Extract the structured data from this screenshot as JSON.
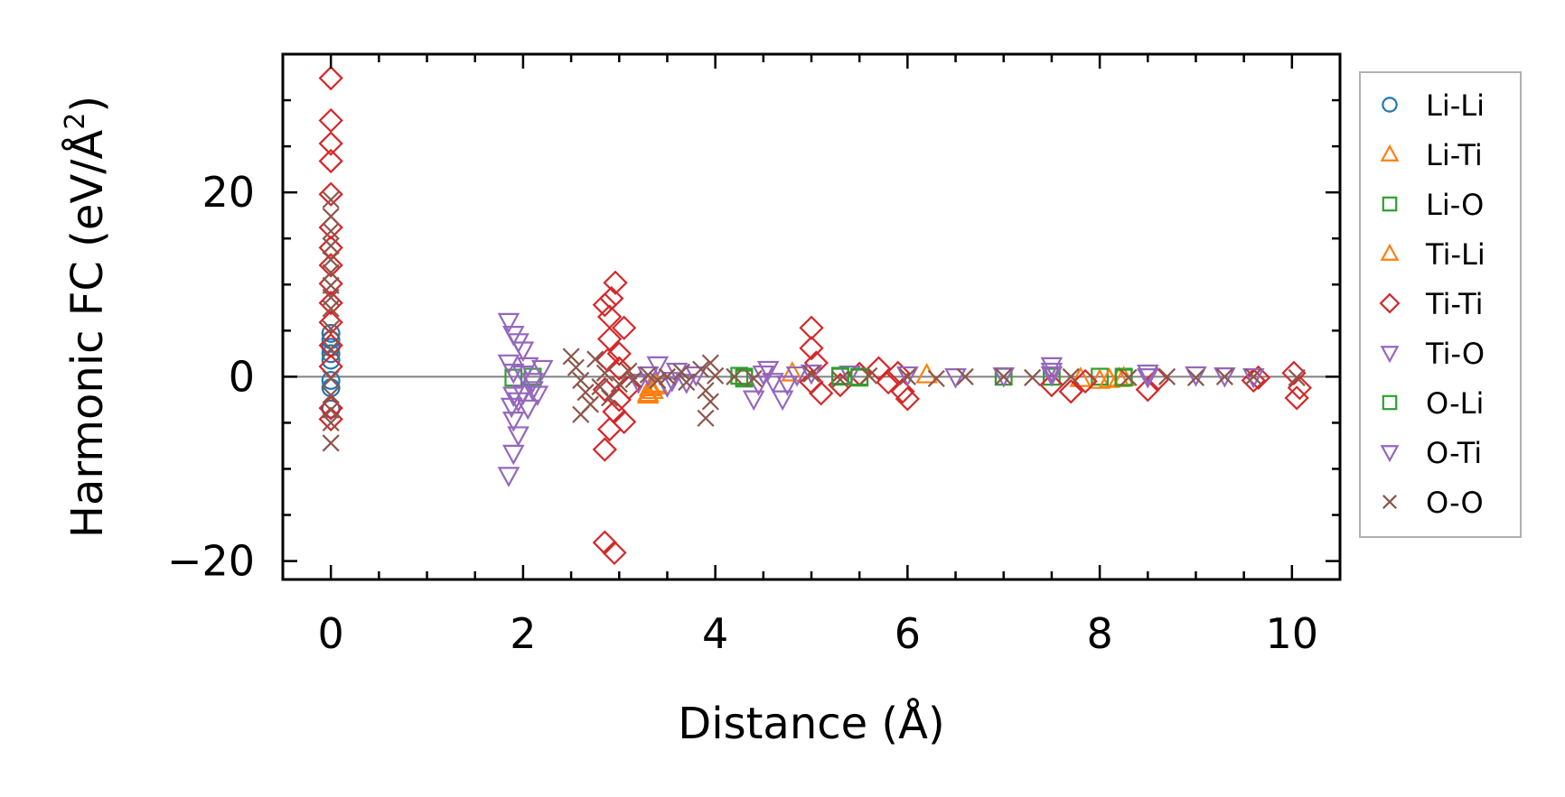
{
  "chart_data": {
    "type": "scatter",
    "xlabel": "Distance (Å)",
    "ylabel_main": "Harmonic FC (eV/Å",
    "ylabel_sup": "2",
    "ylabel_close": ")",
    "xlim": [
      -0.5,
      10.5
    ],
    "ylim": [
      -22,
      35
    ],
    "xticks": [
      0,
      2,
      4,
      6,
      8,
      10
    ],
    "xtick_labels": [
      "0",
      "2",
      "4",
      "6",
      "8",
      "10"
    ],
    "yticks": [
      -20,
      0,
      20
    ],
    "ytick_labels": [
      "−20",
      "0",
      "20"
    ],
    "x_minor_step": 0.5,
    "y_minor_step": 5,
    "zero_line": true,
    "grid": false,
    "legend_position": "outside-right",
    "series": [
      {
        "name": "Li-Li",
        "marker": "circle",
        "color": "#1f77b4",
        "points": [
          [
            0,
            4.7
          ],
          [
            0,
            3.2
          ],
          [
            0,
            -0.4
          ],
          [
            0,
            -3.5
          ],
          [
            0,
            1.8
          ],
          [
            0,
            -1.2
          ],
          [
            0,
            4.0
          ],
          [
            0,
            2.5
          ]
        ]
      },
      {
        "name": "Li-Ti",
        "marker": "triangle-up",
        "color": "#ff7f0e",
        "points": [
          [
            3.3,
            -2.0
          ],
          [
            3.35,
            -1.5
          ],
          [
            3.4,
            -1.0
          ],
          [
            4.8,
            0.4
          ],
          [
            6.2,
            0.2
          ],
          [
            7.8,
            -0.2
          ],
          [
            8.0,
            -0.4
          ],
          [
            8.2,
            -0.2
          ]
        ]
      },
      {
        "name": "Li-O",
        "marker": "square",
        "color": "#2ca02c",
        "points": [
          [
            1.9,
            -0.1
          ],
          [
            2.1,
            0.0
          ],
          [
            4.25,
            0.1
          ],
          [
            4.3,
            0.0
          ],
          [
            5.3,
            0.0
          ],
          [
            5.5,
            -0.1
          ],
          [
            7.0,
            0.0
          ],
          [
            7.5,
            0.0
          ],
          [
            8.0,
            0.0
          ],
          [
            8.25,
            0.0
          ]
        ]
      },
      {
        "name": "Ti-Li",
        "marker": "triangle-up",
        "color": "#ff7f0e",
        "points": [
          [
            3.3,
            -1.8
          ],
          [
            3.32,
            -1.2
          ],
          [
            3.38,
            -0.8
          ],
          [
            8.1,
            -0.3
          ],
          [
            8.25,
            -0.1
          ]
        ]
      },
      {
        "name": "Ti-Ti",
        "marker": "diamond",
        "color": "#d62728",
        "points": [
          [
            0,
            32.4
          ],
          [
            0,
            27.8
          ],
          [
            0,
            25.3
          ],
          [
            0,
            23.4
          ],
          [
            0,
            19.8
          ],
          [
            0,
            16.2
          ],
          [
            0,
            14.0
          ],
          [
            0,
            12.1
          ],
          [
            0,
            10.1
          ],
          [
            0,
            8.0
          ],
          [
            0,
            5.9
          ],
          [
            0,
            3.4
          ],
          [
            0,
            1.1
          ],
          [
            0,
            -3.4
          ],
          [
            0,
            -4.6
          ],
          [
            2.85,
            -18.0
          ],
          [
            2.95,
            -19.1
          ],
          [
            2.85,
            -7.9
          ],
          [
            2.9,
            -5.7
          ],
          [
            2.95,
            -3.8
          ],
          [
            3.0,
            -2.5
          ],
          [
            3.05,
            -4.9
          ],
          [
            2.85,
            7.8
          ],
          [
            2.9,
            6.5
          ],
          [
            2.92,
            8.5
          ],
          [
            2.96,
            10.2
          ],
          [
            2.9,
            4.1
          ],
          [
            3.0,
            2.5
          ],
          [
            3.05,
            5.3
          ],
          [
            3.0,
            0.9
          ],
          [
            2.85,
            -1.4
          ],
          [
            2.88,
            1.8
          ],
          [
            3.1,
            -1.2
          ],
          [
            5.0,
            5.3
          ],
          [
            5.0,
            3.1
          ],
          [
            5.05,
            1.5
          ],
          [
            5.0,
            -0.6
          ],
          [
            5.1,
            -1.8
          ],
          [
            5.3,
            -0.9
          ],
          [
            5.5,
            0.3
          ],
          [
            5.7,
            0.9
          ],
          [
            5.8,
            -0.6
          ],
          [
            5.95,
            -1.6
          ],
          [
            6.0,
            -2.4
          ],
          [
            5.9,
            0.4
          ],
          [
            7.5,
            -0.9
          ],
          [
            7.7,
            -1.6
          ],
          [
            7.85,
            -0.5
          ],
          [
            8.5,
            -1.4
          ],
          [
            8.6,
            -0.3
          ],
          [
            9.6,
            -0.4
          ],
          [
            9.65,
            -0.1
          ],
          [
            10.05,
            -2.3
          ],
          [
            10.08,
            -1.2
          ],
          [
            10.02,
            0.4
          ]
        ]
      },
      {
        "name": "Ti-O",
        "marker": "triangle-down",
        "color": "#9467bd",
        "points": [
          [
            1.85,
            6.0
          ],
          [
            1.9,
            4.6
          ],
          [
            1.95,
            3.8
          ],
          [
            2.0,
            2.9
          ],
          [
            1.85,
            1.5
          ],
          [
            1.9,
            0.5
          ],
          [
            2.0,
            -1.8
          ],
          [
            1.88,
            -3.2
          ],
          [
            1.9,
            -4.7
          ],
          [
            1.95,
            -6.3
          ],
          [
            1.9,
            -8.3
          ],
          [
            1.85,
            -10.7
          ],
          [
            2.05,
            1.2
          ],
          [
            2.1,
            -0.5
          ],
          [
            2.15,
            -1.9
          ],
          [
            2.2,
            0.9
          ],
          [
            1.95,
            -2.6
          ],
          [
            2.05,
            -3.4
          ],
          [
            3.2,
            -0.6
          ],
          [
            3.4,
            1.3
          ],
          [
            3.5,
            -1.0
          ],
          [
            3.6,
            0.6
          ],
          [
            3.7,
            -0.6
          ],
          [
            3.8,
            0.2
          ],
          [
            4.4,
            -2.4
          ],
          [
            4.45,
            -0.8
          ],
          [
            4.55,
            0.8
          ],
          [
            4.6,
            -0.5
          ],
          [
            4.7,
            -2.4
          ],
          [
            4.75,
            -0.8
          ],
          [
            4.85,
            0.2
          ],
          [
            5.0,
            0.4
          ],
          [
            5.4,
            0.3
          ],
          [
            6.0,
            0.2
          ],
          [
            6.5,
            0.0
          ],
          [
            7.0,
            0.1
          ],
          [
            7.5,
            1.2
          ],
          [
            7.5,
            0.2
          ],
          [
            8.5,
            0.4
          ],
          [
            9.0,
            0.2
          ],
          [
            9.3,
            0.1
          ],
          [
            9.6,
            0.0
          ]
        ]
      },
      {
        "name": "O-Li",
        "marker": "square",
        "color": "#2ca02c",
        "points": [
          [
            4.3,
            -0.2
          ],
          [
            5.3,
            0.1
          ],
          [
            5.5,
            0.0
          ],
          [
            8.25,
            -0.1
          ]
        ]
      },
      {
        "name": "O-Ti",
        "marker": "triangle-down",
        "color": "#9467bd",
        "points": [
          [
            1.9,
            -2.0
          ],
          [
            2.0,
            0.3
          ],
          [
            2.1,
            -1.4
          ],
          [
            3.3,
            0.2
          ],
          [
            3.55,
            -0.4
          ],
          [
            4.5,
            0.3
          ],
          [
            7.5,
            0.6
          ],
          [
            8.5,
            0.0
          ]
        ]
      },
      {
        "name": "O-O",
        "marker": "x",
        "color": "#8c564b",
        "points": [
          [
            0,
            19.2
          ],
          [
            0,
            17.4
          ],
          [
            0,
            15.8
          ],
          [
            0,
            14.2
          ],
          [
            0,
            12.7
          ],
          [
            0,
            11.3
          ],
          [
            0,
            9.9
          ],
          [
            0,
            8.6
          ],
          [
            0,
            7.4
          ],
          [
            0,
            5.2
          ],
          [
            0,
            3.0
          ],
          [
            0,
            -0.2
          ],
          [
            0,
            -2.0
          ],
          [
            0,
            -3.6
          ],
          [
            0,
            -5.0
          ],
          [
            0,
            -7.2
          ],
          [
            2.5,
            2.2
          ],
          [
            2.55,
            1.0
          ],
          [
            2.6,
            -0.4
          ],
          [
            2.65,
            -1.7
          ],
          [
            2.7,
            -3.0
          ],
          [
            2.6,
            -4.1
          ],
          [
            2.75,
            1.9
          ],
          [
            2.8,
            -1.1
          ],
          [
            2.85,
            0.4
          ],
          [
            2.9,
            -2.3
          ],
          [
            3.0,
            -0.8
          ],
          [
            3.1,
            0.6
          ],
          [
            3.15,
            -0.3
          ],
          [
            3.3,
            0.2
          ],
          [
            3.4,
            -0.4
          ],
          [
            3.5,
            0.0
          ],
          [
            3.65,
            0.5
          ],
          [
            3.7,
            -0.6
          ],
          [
            3.85,
            0.8
          ],
          [
            3.9,
            -1.5
          ],
          [
            3.95,
            -2.7
          ],
          [
            3.9,
            -4.5
          ],
          [
            3.95,
            1.5
          ],
          [
            4.0,
            0.1
          ],
          [
            4.2,
            0.0
          ],
          [
            4.4,
            -0.2
          ],
          [
            5.0,
            0.3
          ],
          [
            5.3,
            -0.3
          ],
          [
            5.6,
            0.1
          ],
          [
            6.0,
            0.0
          ],
          [
            6.3,
            -0.2
          ],
          [
            6.6,
            0.0
          ],
          [
            7.0,
            0.0
          ],
          [
            7.3,
            -0.1
          ],
          [
            7.7,
            0.0
          ],
          [
            8.3,
            -0.1
          ],
          [
            8.7,
            0.0
          ],
          [
            9.0,
            -0.1
          ],
          [
            9.3,
            0.0
          ],
          [
            9.6,
            0.0
          ],
          [
            10.05,
            -0.1
          ]
        ]
      }
    ]
  }
}
